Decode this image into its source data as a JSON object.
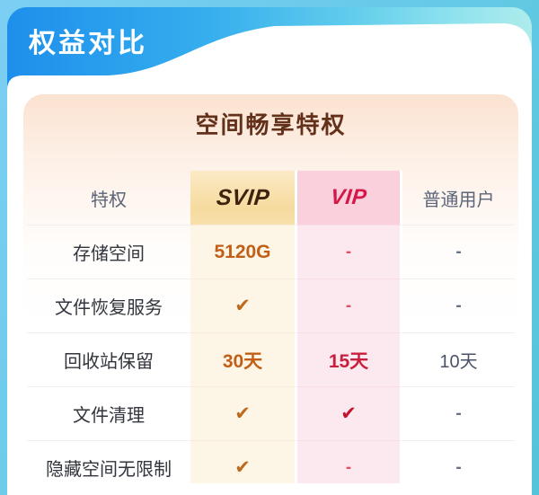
{
  "page": {
    "header_title": "权益对比"
  },
  "card": {
    "title": "空间畅享特权"
  },
  "table": {
    "columns": [
      {
        "key": "label",
        "label": "特权"
      },
      {
        "key": "svip",
        "label": "SVIP"
      },
      {
        "key": "vip",
        "label": "VIP"
      },
      {
        "key": "normal",
        "label": "普通用户"
      }
    ],
    "rows": [
      {
        "label": "存储空间",
        "svip": {
          "type": "text",
          "value": "5120G"
        },
        "vip": {
          "type": "dash"
        },
        "normal": {
          "type": "dash"
        }
      },
      {
        "label": "文件恢复服务",
        "svip": {
          "type": "check"
        },
        "vip": {
          "type": "dash"
        },
        "normal": {
          "type": "dash"
        }
      },
      {
        "label": "回收站保留",
        "svip": {
          "type": "text",
          "value": "30天"
        },
        "vip": {
          "type": "text",
          "value": "15天"
        },
        "normal": {
          "type": "text",
          "value": "10天"
        }
      },
      {
        "label": "文件清理",
        "svip": {
          "type": "check"
        },
        "vip": {
          "type": "check"
        },
        "normal": {
          "type": "dash"
        }
      },
      {
        "label": "隐藏空间无限制",
        "svip": {
          "type": "check"
        },
        "vip": {
          "type": "dash"
        },
        "normal": {
          "type": "dash"
        }
      }
    ]
  },
  "icons": {
    "check": "✔",
    "dash": "-"
  },
  "colors": {
    "header_blue_start": "#1e8fec",
    "header_blue_end": "#aeeceb",
    "page_frame_blue": "#63c9e4",
    "card_peach": "#fbe2d0",
    "title_brown": "#63301a",
    "svip_gold_header": "#f6db9e",
    "svip_gold_body": "#fdf6e6",
    "svip_text": "#c25f17",
    "svip_logo": "#3f230f",
    "vip_pink_header": "#fad0dc",
    "vip_pink_body": "#fce9ef",
    "vip_text": "#c81f3e",
    "vip_logo": "#d41949",
    "neutral_gray": "#5b6478"
  }
}
